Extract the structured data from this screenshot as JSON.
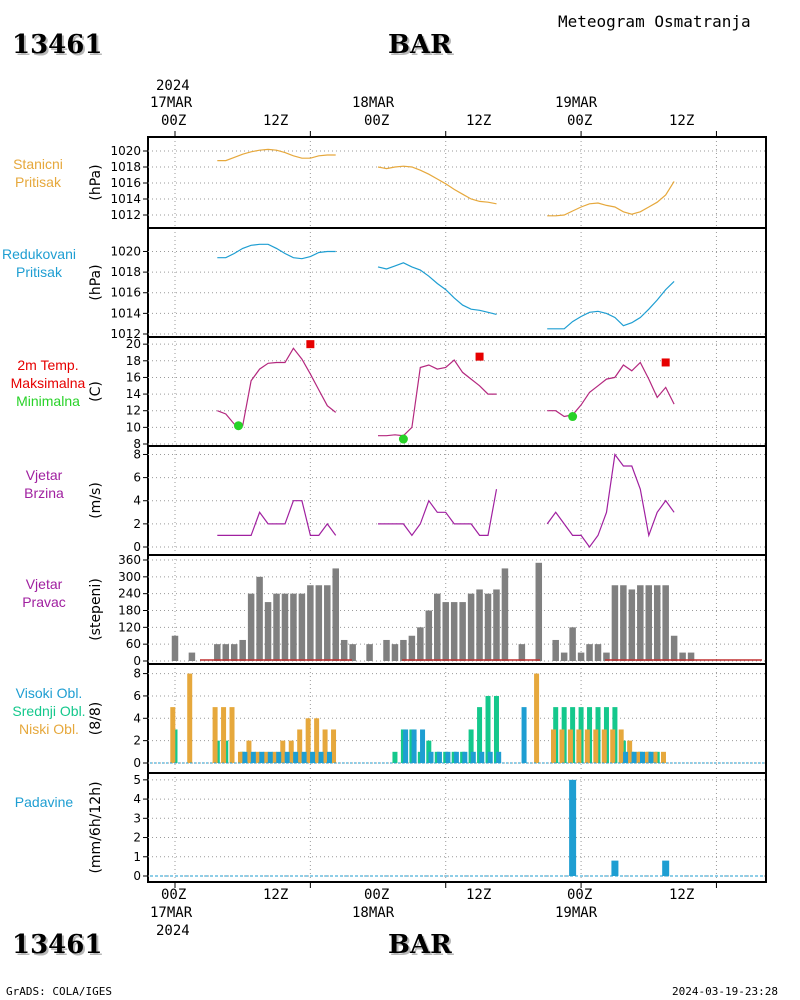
{
  "header": {
    "station_id": "13461",
    "station_name": "BAR",
    "title": "Meteogram Osmatranja"
  },
  "top_axis": {
    "year": "2024",
    "dates": [
      "17MAR",
      "18MAR",
      "19MAR"
    ],
    "hours": [
      "00Z",
      "12Z",
      "00Z",
      "12Z",
      "00Z",
      "12Z"
    ]
  },
  "bottom_axis": {
    "year": "2024",
    "dates": [
      "17MAR",
      "18MAR",
      "19MAR"
    ],
    "hours": [
      "00Z",
      "12Z",
      "00Z",
      "12Z",
      "00Z",
      "12Z"
    ]
  },
  "footer": {
    "credit": "GrADS: COLA/IGES",
    "timestamp": "2024-03-19-23:28"
  },
  "panels": {
    "p1": {
      "label1": "Stanicni",
      "label2": "Pritisak",
      "unit": "(hPa)"
    },
    "p2": {
      "label1": "Redukovani",
      "label2": "Pritisak",
      "unit": "(hPa)"
    },
    "p3": {
      "label1": "2m Temp.",
      "label2": "Maksimalna",
      "label3": "Minimalna",
      "unit": "(C)"
    },
    "p4": {
      "label1": "Vjetar",
      "label2": "Brzina",
      "unit": "(m/s)"
    },
    "p5": {
      "label1": "Vjetar",
      "label2": "Pravac",
      "unit": "(stepeni)"
    },
    "p6": {
      "label1": "Visoki Obl.",
      "label2": "Srednji Obl.",
      "label3": "Niski Obl.",
      "unit": "(8/8)"
    },
    "p7": {
      "label1": "Padavine",
      "unit": "(mm/6h/12h)"
    }
  },
  "colors": {
    "station_pressure": "#e6a83c",
    "reduced_pressure": "#1e9ed2",
    "temperature": "#b4287f",
    "max_temp": "#e60000",
    "min_temp": "#28d228",
    "wind_speed": "#a020a0",
    "wind_dir": "#808080",
    "high_cloud": "#1e9ed2",
    "mid_cloud": "#14c88c",
    "low_cloud": "#e6a83c",
    "precip": "#1e9ed2",
    "panel_label_pressure": "#e6a83c",
    "panel_label_reduced": "#1e9ed2",
    "panel_label_temp": "#e60000",
    "panel_label_max": "#e60000",
    "panel_label_min": "#28d228",
    "panel_label_wind": "#a020a0",
    "panel_label_cloud": "#1e9ed2"
  },
  "chart_data": [
    {
      "type": "line",
      "panel": "p1",
      "ylim": [
        1011.5,
        1021
      ],
      "yticks": [
        1012,
        1014,
        1016,
        1018,
        1020
      ],
      "series": [
        {
          "name": "Stanicni Pritisak",
          "color": "#e6a83c",
          "segments": [
            {
              "x": [
                5,
                6,
                7,
                8,
                9,
                10,
                11,
                12,
                13,
                14,
                15,
                16,
                17,
                18,
                19
              ],
              "y": [
                1018.8,
                1018.8,
                1019.2,
                1019.6,
                1019.9,
                1020.1,
                1020.2,
                1020.1,
                1019.8,
                1019.4,
                1019.1,
                1019.1,
                1019.4,
                1019.5,
                1019.5
              ]
            },
            {
              "x": [
                24,
                25,
                26,
                27,
                28,
                29,
                30,
                31,
                32,
                33,
                34,
                35,
                36,
                37,
                38
              ],
              "y": [
                1018.0,
                1017.8,
                1018.0,
                1018.1,
                1018.0,
                1017.6,
                1017.1,
                1016.5,
                1015.9,
                1015.2,
                1014.6,
                1014.0,
                1013.7,
                1013.6,
                1013.4
              ]
            },
            {
              "x": [
                44,
                45,
                46,
                47,
                48,
                49,
                50,
                51,
                52,
                53,
                54,
                55,
                56,
                57,
                58,
                59
              ],
              "y": [
                1011.9,
                1011.9,
                1012.0,
                1012.5,
                1013.0,
                1013.4,
                1013.5,
                1013.2,
                1013.0,
                1012.4,
                1012.1,
                1012.4,
                1013.0,
                1013.6,
                1014.5,
                1016.2
              ]
            }
          ]
        }
      ]
    },
    {
      "type": "line",
      "panel": "p2",
      "ylim": [
        1012,
        1021.5
      ],
      "yticks": [
        1012,
        1014,
        1016,
        1018,
        1020
      ],
      "series": [
        {
          "name": "Redukovani Pritisak",
          "color": "#1e9ed2",
          "segments": [
            {
              "x": [
                5,
                6,
                7,
                8,
                9,
                10,
                11,
                12,
                13,
                14,
                15,
                16,
                17,
                18,
                19
              ],
              "y": [
                1019.4,
                1019.4,
                1019.8,
                1020.3,
                1020.6,
                1020.7,
                1020.7,
                1020.3,
                1019.8,
                1019.4,
                1019.3,
                1019.5,
                1019.9,
                1020.0,
                1020.0
              ]
            },
            {
              "x": [
                24,
                25,
                26,
                27,
                28,
                29,
                30,
                31,
                32,
                33,
                34,
                35,
                36,
                37,
                38
              ],
              "y": [
                1018.5,
                1018.3,
                1018.6,
                1018.9,
                1018.5,
                1018.2,
                1017.6,
                1016.9,
                1016.3,
                1015.5,
                1014.8,
                1014.4,
                1014.3,
                1014.1,
                1013.9
              ]
            },
            {
              "x": [
                44,
                45,
                46,
                47,
                48,
                49,
                50,
                51,
                52,
                53,
                54,
                55,
                56,
                57,
                58,
                59
              ],
              "y": [
                1012.5,
                1012.5,
                1012.5,
                1013.2,
                1013.7,
                1014.1,
                1014.2,
                1014.0,
                1013.6,
                1012.8,
                1013.1,
                1013.6,
                1014.4,
                1015.3,
                1016.3,
                1017.1
              ]
            }
          ]
        }
      ]
    },
    {
      "type": "line",
      "panel": "p3",
      "ylim": [
        8,
        20.5
      ],
      "yticks": [
        8,
        10,
        12,
        14,
        16,
        18,
        20
      ],
      "series": [
        {
          "name": "2m Temp.",
          "color": "#b4287f",
          "segments": [
            {
              "x": [
                5,
                6,
                7,
                8,
                9,
                10,
                11,
                12,
                13,
                14,
                15,
                16,
                17,
                18,
                19
              ],
              "y": [
                12,
                11.6,
                10.4,
                10.2,
                15.6,
                17.0,
                17.7,
                17.8,
                17.8,
                19.5,
                18.2,
                16.4,
                14.5,
                12.6,
                11.8
              ]
            },
            {
              "x": [
                24,
                25,
                26,
                27,
                28,
                29,
                30,
                31,
                32,
                33,
                34,
                35,
                36,
                37,
                38
              ],
              "y": [
                9.0,
                9.0,
                9.1,
                9.0,
                10.0,
                17.2,
                17.5,
                17.0,
                17.2,
                18.1,
                16.6,
                15.8,
                15.0,
                14.0,
                14.0
              ]
            },
            {
              "x": [
                44,
                45,
                46,
                47,
                48,
                49,
                50,
                51,
                52,
                53,
                54,
                55,
                56,
                57,
                58,
                59
              ],
              "y": [
                12.0,
                12.0,
                11.3,
                11.5,
                12.7,
                14.2,
                15.0,
                15.8,
                16.0,
                17.5,
                16.8,
                17.8,
                15.8,
                13.6,
                14.8,
                12.8
              ]
            }
          ]
        }
      ],
      "markers": {
        "max": {
          "color": "#e60000",
          "x": [
            16,
            36,
            58
          ],
          "y": [
            20.0,
            18.5,
            17.8
          ]
        },
        "min": {
          "color": "#28d228",
          "x": [
            7.5,
            27,
            47
          ],
          "y": [
            10.2,
            8.6,
            11.3
          ]
        }
      }
    },
    {
      "type": "line",
      "panel": "p4",
      "ylim": [
        0,
        8.3
      ],
      "yticks": [
        0,
        2,
        4,
        6,
        8
      ],
      "series": [
        {
          "name": "Vjetar Brzina",
          "color": "#a020a0",
          "segments": [
            {
              "x": [
                5,
                6,
                7,
                8,
                9,
                10,
                11,
                12,
                13,
                14,
                15,
                16,
                17,
                18,
                19
              ],
              "y": [
                1,
                1,
                1,
                1,
                1,
                3,
                2,
                2,
                2,
                4,
                4,
                1,
                1,
                2,
                1
              ]
            },
            {
              "x": [
                24,
                25,
                26,
                27,
                28,
                29,
                30,
                31,
                32,
                33,
                34,
                35,
                36,
                37,
                38
              ],
              "y": [
                2,
                2,
                2,
                2,
                1,
                2,
                4,
                3,
                3,
                2,
                2,
                2,
                1,
                1,
                5
              ]
            },
            {
              "x": [
                44,
                45,
                46,
                47,
                48,
                49,
                50,
                51,
                52,
                53,
                54,
                55,
                56,
                57,
                58,
                59
              ],
              "y": [
                2,
                3,
                2,
                1,
                1,
                0,
                1,
                3,
                8,
                7,
                7,
                5,
                1,
                3,
                4,
                3
              ]
            }
          ]
        }
      ]
    },
    {
      "type": "bar",
      "panel": "p5",
      "ylim": [
        0,
        360
      ],
      "yticks": [
        0,
        60,
        120,
        180,
        240,
        300,
        360
      ],
      "series": [
        {
          "name": "Vjetar Pravac",
          "color": "#808080",
          "x": [
            0,
            2,
            5,
            6,
            7,
            8,
            9,
            10,
            11,
            12,
            13,
            14,
            15,
            16,
            17,
            18,
            19,
            20,
            21,
            23,
            25,
            26,
            27,
            28,
            29,
            30,
            31,
            32,
            33,
            34,
            35,
            36,
            37,
            38,
            39,
            41,
            43,
            45,
            46,
            47,
            48,
            49,
            50,
            51,
            52,
            53,
            54,
            55,
            56,
            57,
            58,
            59,
            60,
            61
          ],
          "values": [
            90,
            30,
            60,
            60,
            60,
            75,
            240,
            300,
            210,
            240,
            240,
            240,
            240,
            270,
            270,
            270,
            330,
            75,
            60,
            60,
            75,
            60,
            75,
            90,
            120,
            180,
            240,
            210,
            210,
            210,
            240,
            255,
            240,
            255,
            330,
            60,
            350,
            75,
            30,
            120,
            30,
            60,
            60,
            30,
            270,
            270,
            255,
            270,
            270,
            270,
            270,
            90,
            30,
            30
          ]
        }
      ]
    },
    {
      "type": "bar",
      "panel": "p6",
      "ylim": [
        0,
        8.5
      ],
      "yticks": [
        0,
        2,
        4,
        6,
        8
      ],
      "series": [
        {
          "name": "Niski Obl.",
          "color": "#e6a83c",
          "x": [
            0,
            2,
            5,
            6,
            7,
            8,
            9,
            10,
            11,
            12,
            13,
            14,
            15,
            16,
            17,
            18,
            19,
            43,
            45,
            46,
            47,
            48,
            49,
            50,
            51,
            52,
            53,
            54,
            55,
            56,
            57,
            58
          ],
          "values": [
            5,
            8,
            5,
            5,
            5,
            1,
            2,
            1,
            1,
            1,
            2,
            2,
            3,
            4,
            4,
            3,
            3,
            8,
            3,
            3,
            3,
            3,
            3,
            3,
            3,
            3,
            3,
            2,
            1,
            1,
            1,
            1
          ]
        },
        {
          "name": "Srednji Obl.",
          "color": "#14c88c",
          "x": [
            0,
            5,
            6,
            8,
            26,
            27,
            28,
            29,
            30,
            31,
            32,
            33,
            34,
            35,
            36,
            37,
            38,
            45,
            46,
            47,
            48,
            49,
            50,
            51,
            52,
            53,
            54,
            55,
            56,
            57
          ],
          "values": [
            3,
            2,
            2,
            1,
            1,
            3,
            3,
            1,
            2,
            1,
            1,
            1,
            1,
            3,
            5,
            6,
            6,
            5,
            5,
            5,
            5,
            5,
            5,
            5,
            5,
            2,
            1,
            1,
            1,
            1
          ]
        },
        {
          "name": "Visoki Obl.",
          "color": "#1e9ed2",
          "x": [
            8,
            9,
            10,
            11,
            12,
            13,
            14,
            15,
            16,
            17,
            18,
            27,
            28,
            29,
            30,
            31,
            32,
            33,
            34,
            35,
            36,
            37,
            38,
            41,
            53,
            54,
            55,
            56
          ],
          "values": [
            1,
            1,
            1,
            1,
            1,
            1,
            1,
            1,
            1,
            1,
            1,
            3,
            3,
            3,
            1,
            1,
            1,
            1,
            1,
            1,
            1,
            1,
            1,
            5,
            1,
            1,
            1,
            1
          ]
        }
      ]
    },
    {
      "type": "bar",
      "panel": "p7",
      "ylim": [
        0,
        5.2
      ],
      "yticks": [
        0,
        1,
        2,
        3,
        4,
        5
      ],
      "series": [
        {
          "name": "Padavine",
          "color": "#1e9ed2",
          "x": [
            47,
            52,
            58
          ],
          "values": [
            5.0,
            0.8,
            0.8
          ]
        }
      ]
    }
  ]
}
